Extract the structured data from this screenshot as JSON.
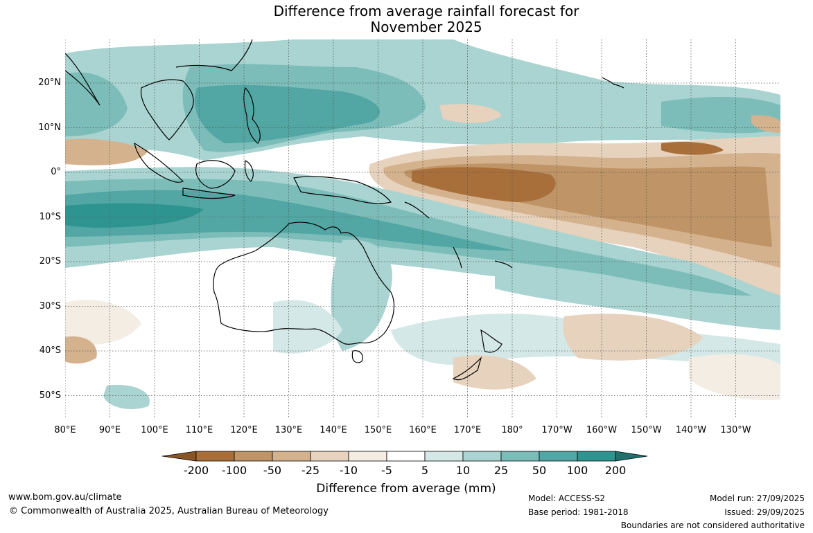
{
  "title_line1": "Difference from average rainfall forecast for",
  "title_line2": "November 2025",
  "lat_labels": [
    "20°N",
    "10°N",
    "0°",
    "10°S",
    "20°S",
    "30°S",
    "40°S",
    "50°S"
  ],
  "lon_labels": [
    "80°E",
    "90°E",
    "100°E",
    "110°E",
    "120°E",
    "130°E",
    "140°E",
    "150°E",
    "160°E",
    "170°E",
    "180°",
    "170°W",
    "160°W",
    "150°W",
    "140°W",
    "130°W"
  ],
  "legend": {
    "title": "Difference from average (mm)",
    "ticks": [
      "-200",
      "-100",
      "-50",
      "-25",
      "-10",
      "-5",
      "5",
      "10",
      "25",
      "50",
      "100",
      "200"
    ],
    "colors": [
      "#8a5524",
      "#a86f3a",
      "#bf9466",
      "#d4b28e",
      "#e6d2bd",
      "#f3ede4",
      "#ffffff",
      "#d4e9e7",
      "#a9d4d1",
      "#7cbdba",
      "#52a6a3",
      "#2e9490",
      "#1f6f6c"
    ]
  },
  "footer": {
    "website": "www.bom.gov.au/climate",
    "copyright": "© Commonwealth of Australia 2025, Australian Bureau of Meteorology",
    "model": "Model: ACCESS-S2",
    "base_period": "Base period: 1981-2018",
    "model_run": "Model run: 27/09/2025",
    "issued": "Issued: 29/09/2025",
    "disclaimer": "Boundaries are not considered authoritative"
  }
}
